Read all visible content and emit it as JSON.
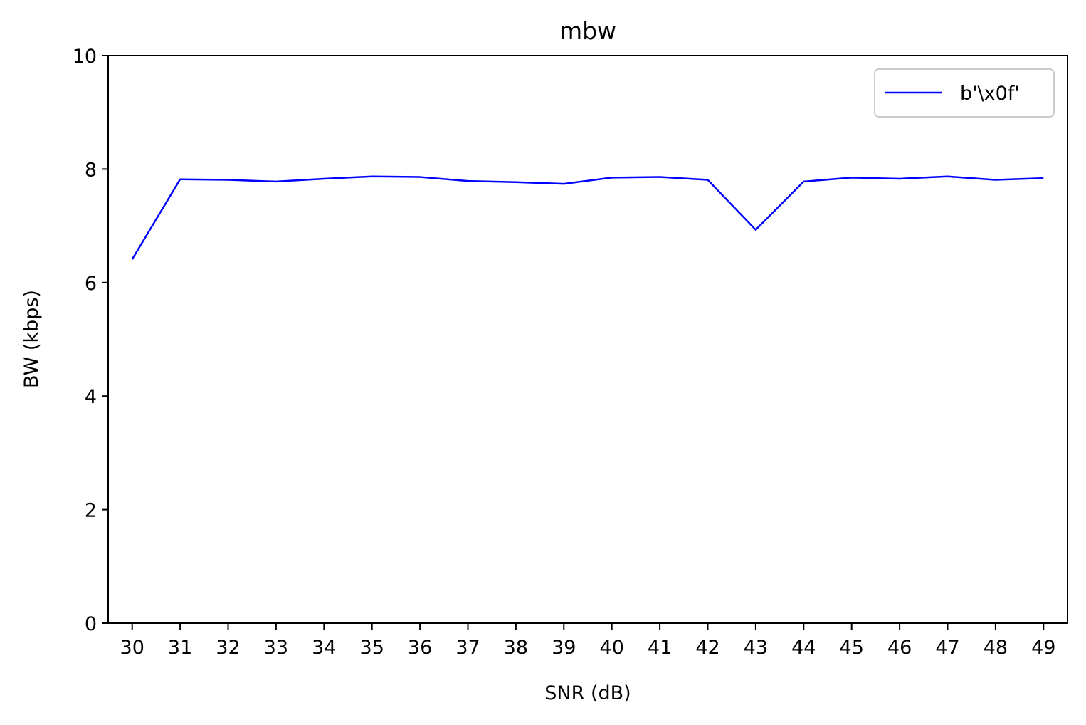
{
  "chart_data": {
    "type": "line",
    "title": "mbw",
    "xlabel": "SNR (dB)",
    "ylabel": "BW (kbps)",
    "x": [
      30,
      31,
      32,
      33,
      34,
      35,
      36,
      37,
      38,
      39,
      40,
      41,
      42,
      43,
      44,
      45,
      46,
      47,
      48,
      49
    ],
    "xticks": [
      "30",
      "31",
      "32",
      "33",
      "34",
      "35",
      "36",
      "37",
      "38",
      "39",
      "40",
      "41",
      "42",
      "43",
      "44",
      "45",
      "46",
      "47",
      "48",
      "49"
    ],
    "yticks": [
      "0",
      "2",
      "4",
      "6",
      "8",
      "10"
    ],
    "ylim": [
      0,
      10
    ],
    "xlim": [
      29.5,
      49.5
    ],
    "grid": false,
    "legend_position": "upper right",
    "series": [
      {
        "name": "b'\\x0f'",
        "color": "#0000ff",
        "values": [
          6.41,
          7.82,
          7.81,
          7.78,
          7.83,
          7.87,
          7.86,
          7.79,
          7.77,
          7.74,
          7.85,
          7.86,
          7.81,
          6.93,
          7.78,
          7.85,
          7.83,
          7.87,
          7.81,
          7.84
        ]
      }
    ]
  }
}
